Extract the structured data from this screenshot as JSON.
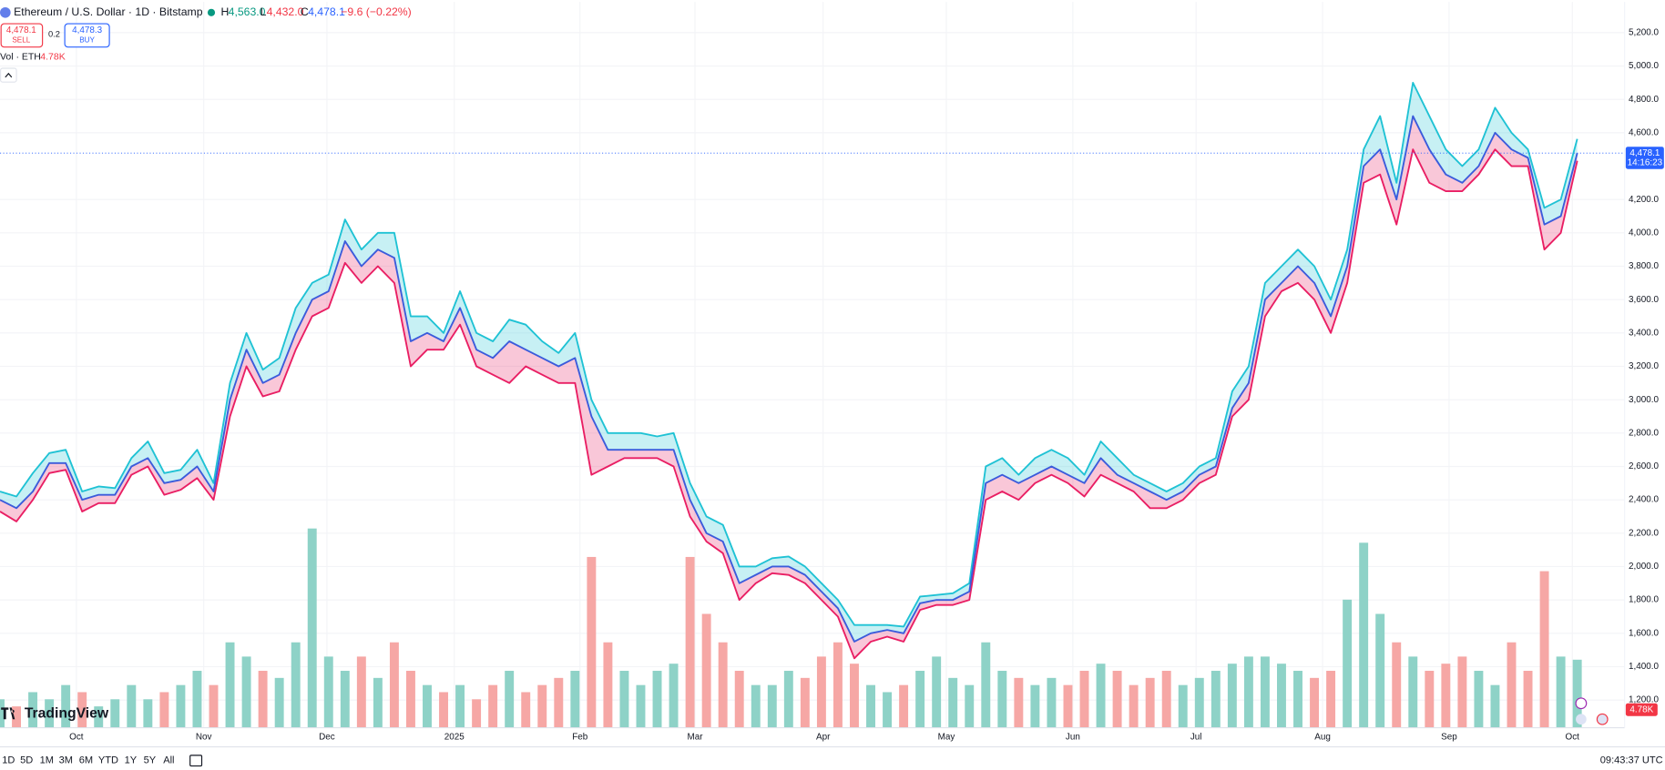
{
  "header": {
    "symbol": "Ethereum / U.S. Dollar · 1D · Bitstamp",
    "high_label": "H",
    "high": "4,563.0",
    "low_label": "L",
    "low": "4,432.0",
    "close_label": "C",
    "close": "4,478.1",
    "change": "−9.6 (−0.22%)"
  },
  "trade": {
    "sell_price": "4,478.1",
    "sell": "SELL",
    "spread": "0.2",
    "buy_price": "4,478.3",
    "buy": "BUY"
  },
  "volume_legend": {
    "label": "Vol · ETH",
    "value": "4.78K"
  },
  "price_tag": {
    "price": "4,478.1",
    "countdown": "14:16:23"
  },
  "logo": "TradingView",
  "toolbar": {
    "ranges": [
      "1D",
      "5D",
      "1M",
      "3M",
      "6M",
      "YTD",
      "1Y",
      "5Y",
      "All"
    ],
    "clock": "09:43:37 UTC"
  },
  "chart_data": {
    "type": "hlc_area",
    "high_color": "#1fc2d4",
    "low_color": "#e91e63",
    "close_color": "#3b5bdb",
    "up_color": "#8ed2c7",
    "down_color": "#f6a7a5",
    "high": [
      2450,
      2420,
      2560,
      2680,
      2700,
      2450,
      2480,
      2470,
      2650,
      2750,
      2560,
      2580,
      2700,
      2500,
      3100,
      3400,
      3180,
      3250,
      3550,
      3700,
      3750,
      4080,
      3900,
      4000,
      4000,
      3500,
      3500,
      3400,
      3650,
      3400,
      3350,
      3480,
      3450,
      3350,
      3280,
      3400,
      3000,
      2800,
      2800,
      2800,
      2780,
      2800,
      2500,
      2300,
      2250,
      2000,
      2000,
      2050,
      2060,
      2000,
      1900,
      1800,
      1650,
      1650,
      1650,
      1640,
      1820,
      1830,
      1840,
      1900,
      2600,
      2650,
      2550,
      2650,
      2700,
      2650,
      2550,
      2750,
      2650,
      2550,
      2500,
      2450,
      2500,
      2600,
      2650,
      3050,
      3200,
      3700,
      3800,
      3900,
      3800,
      3600,
      3900,
      4500,
      4700,
      4300,
      4900,
      4700,
      4500,
      4400,
      4500,
      4750,
      4600,
      4500,
      4150,
      4200,
      4563
    ],
    "low": [
      2330,
      2270,
      2400,
      2560,
      2580,
      2330,
      2380,
      2380,
      2550,
      2600,
      2430,
      2460,
      2530,
      2400,
      2900,
      3200,
      3020,
      3050,
      3300,
      3500,
      3550,
      3820,
      3700,
      3800,
      3700,
      3200,
      3300,
      3300,
      3450,
      3200,
      3150,
      3100,
      3200,
      3150,
      3100,
      3100,
      2550,
      2600,
      2650,
      2650,
      2650,
      2600,
      2300,
      2150,
      2080,
      1800,
      1900,
      1960,
      1950,
      1900,
      1800,
      1700,
      1450,
      1550,
      1580,
      1550,
      1740,
      1770,
      1770,
      1800,
      2400,
      2450,
      2400,
      2500,
      2550,
      2500,
      2420,
      2550,
      2500,
      2450,
      2350,
      2350,
      2400,
      2500,
      2550,
      2900,
      3000,
      3500,
      3650,
      3700,
      3600,
      3400,
      3700,
      4300,
      4350,
      4050,
      4500,
      4300,
      4250,
      4250,
      4350,
      4500,
      4400,
      4400,
      3900,
      4000,
      4432
    ],
    "close": [
      2400,
      2350,
      2450,
      2620,
      2620,
      2400,
      2430,
      2430,
      2600,
      2650,
      2500,
      2520,
      2600,
      2450,
      3000,
      3300,
      3100,
      3150,
      3400,
      3600,
      3650,
      3950,
      3800,
      3900,
      3850,
      3350,
      3400,
      3350,
      3550,
      3300,
      3250,
      3350,
      3300,
      3250,
      3200,
      3250,
      2900,
      2700,
      2700,
      2700,
      2700,
      2700,
      2400,
      2200,
      2150,
      1900,
      1950,
      2000,
      2000,
      1950,
      1850,
      1750,
      1550,
      1600,
      1620,
      1600,
      1780,
      1800,
      1800,
      1850,
      2500,
      2550,
      2500,
      2550,
      2600,
      2550,
      2500,
      2650,
      2550,
      2500,
      2450,
      2400,
      2450,
      2550,
      2600,
      2950,
      3100,
      3600,
      3700,
      3800,
      3700,
      3500,
      3800,
      4400,
      4500,
      4200,
      4700,
      4500,
      4350,
      4300,
      4400,
      4600,
      4500,
      4450,
      4050,
      4100,
      4478.1
    ],
    "volume": [
      2,
      1.5,
      2.5,
      2,
      3,
      2.5,
      1.5,
      2,
      3,
      2,
      2.5,
      3,
      4,
      3,
      6,
      5,
      4,
      3.5,
      6,
      14,
      5,
      4,
      5,
      3.5,
      6,
      4,
      3,
      2.5,
      3,
      2,
      3,
      4,
      2.5,
      3,
      3.5,
      4,
      12,
      6,
      4,
      3,
      4,
      4.5,
      12,
      8,
      6,
      4,
      3,
      3,
      4,
      3.5,
      5,
      6,
      4.5,
      3,
      2.5,
      3,
      4,
      5,
      3.5,
      3,
      6,
      4,
      3.5,
      3,
      3.5,
      3,
      4,
      4.5,
      4,
      3,
      3.5,
      4,
      3,
      3.5,
      4,
      4.5,
      5,
      5,
      4.5,
      4,
      3.5,
      4,
      9,
      13,
      8,
      6,
      5,
      4,
      4.5,
      5,
      4,
      3,
      6,
      4,
      11,
      5,
      4.78
    ],
    "volume_last_label": "4.78K",
    "volume_ylim": [
      0,
      51
    ],
    "xlim": [
      0,
      96.3
    ],
    "xticks": [
      {
        "value": 4.65,
        "label": "Oct"
      },
      {
        "value": 12.4,
        "label": "Nov"
      },
      {
        "value": 19.9,
        "label": "Dec"
      },
      {
        "value": 27.65,
        "label": "2025"
      },
      {
        "value": 35.3,
        "label": "Feb"
      },
      {
        "value": 42.3,
        "label": "Mar"
      },
      {
        "value": 50.1,
        "label": "Apr"
      },
      {
        "value": 57.6,
        "label": "May"
      },
      {
        "value": 65.3,
        "label": "Jun"
      },
      {
        "value": 72.8,
        "label": "Jul"
      },
      {
        "value": 80.5,
        "label": "Aug"
      },
      {
        "value": 88.2,
        "label": "Sep"
      },
      {
        "value": 95.7,
        "label": "Oct"
      }
    ],
    "ylim": [
      1034,
      5384
    ],
    "yticks": [
      {
        "value": 5200,
        "label": "5,200.0"
      },
      {
        "value": 5000,
        "label": "5,000.0"
      },
      {
        "value": 4800,
        "label": "4,800.0"
      },
      {
        "value": 4600,
        "label": "4,600.0"
      },
      {
        "value": 4200,
        "label": "4,200.0"
      },
      {
        "value": 4000,
        "label": "4,000.0"
      },
      {
        "value": 3800,
        "label": "3,800.0"
      },
      {
        "value": 3600,
        "label": "3,600.0"
      },
      {
        "value": 3400,
        "label": "3,400.0"
      },
      {
        "value": 3200,
        "label": "3,200.0"
      },
      {
        "value": 3000,
        "label": "3,000.0"
      },
      {
        "value": 2800,
        "label": "2,800.0"
      },
      {
        "value": 2600,
        "label": "2,600.0"
      },
      {
        "value": 2400,
        "label": "2,400.0"
      },
      {
        "value": 2200,
        "label": "2,200.0"
      },
      {
        "value": 2000,
        "label": "2,000.0"
      },
      {
        "value": 1800,
        "label": "1,800.0"
      },
      {
        "value": 1600,
        "label": "1,600.0"
      },
      {
        "value": 1400,
        "label": "1,400.0"
      },
      {
        "value": 1200,
        "label": "1,200.0"
      }
    ],
    "grid": true
  }
}
